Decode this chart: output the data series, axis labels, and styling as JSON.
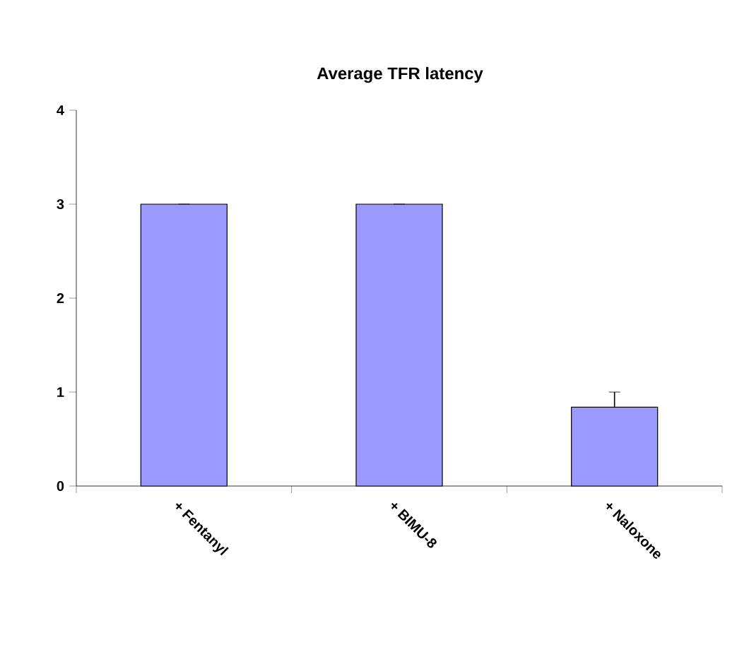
{
  "chart_data": {
    "type": "bar",
    "title": "Average TFR latency",
    "categories": [
      "+ Fentanyl",
      "+ BIMU-8",
      "+ Naloxone"
    ],
    "values": [
      3,
      3,
      0.84
    ],
    "errors": [
      null,
      null,
      0.16
    ],
    "color": "#9999ff",
    "ylim": [
      0,
      4
    ],
    "yticks": [
      0,
      1,
      2,
      3,
      4
    ],
    "grid": false
  }
}
